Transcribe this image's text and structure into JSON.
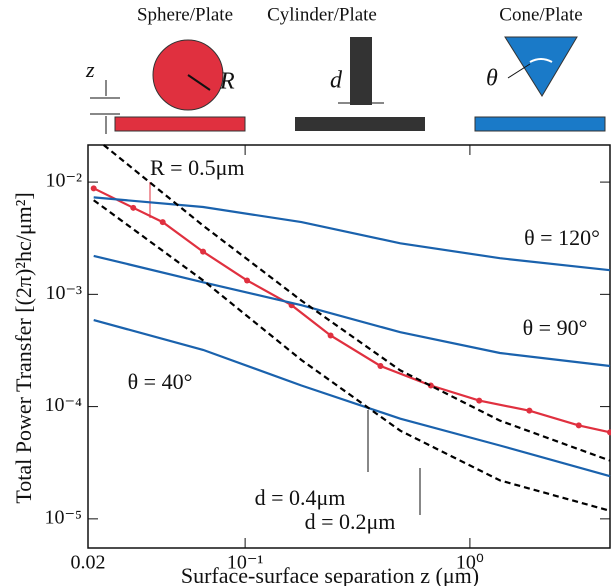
{
  "schematic": {
    "sphere": "Sphere/Plate",
    "cylinder": "Cylinder/Plate",
    "cone": "Cone/Plate",
    "z": "z",
    "R": "R",
    "d": "d",
    "theta": "θ"
  },
  "chart_data": {
    "type": "line",
    "xscale": "log",
    "yscale": "log",
    "xlabel": "Surface-surface separation z (μm)",
    "ylabel": "Total Power Transfer [(2π)²hc/μm²]",
    "xlim": [
      0.02,
      4.2
    ],
    "ylim": [
      5.5e-06,
      0.0214
    ],
    "xticks": [
      0.02,
      {
        "value": 0.1,
        "label": "10⁻¹"
      },
      {
        "value": 1,
        "label": "10⁰"
      }
    ],
    "yticks": [
      {
        "value": 1e-05,
        "label": "10⁻⁵"
      },
      {
        "value": 0.0001,
        "label": "10⁻⁴"
      },
      {
        "value": 0.001,
        "label": "10⁻³"
      },
      {
        "value": 0.01,
        "label": "10⁻²"
      }
    ],
    "series": [
      {
        "name": "R = 0.5μm",
        "color": "#e0303f",
        "style": "solid",
        "marker": true,
        "x": [
          0.0212,
          0.0318,
          0.043,
          0.065,
          0.102,
          0.161,
          0.24,
          0.4,
          0.67,
          1.1,
          1.84,
          3.05,
          4.2
        ],
        "values": [
          0.0088,
          0.0059,
          0.0044,
          0.0024,
          0.00133,
          0.0008,
          0.00043,
          0.00023,
          0.000154,
          0.000113,
          9.2e-05,
          6.8e-05,
          5.9e-05
        ]
      },
      {
        "name": "θ = 120°",
        "color": "#1a62ad",
        "style": "solid",
        "marker": false,
        "x": [
          0.0212,
          0.065,
          0.178,
          0.49,
          1.36,
          4.2
        ],
        "values": [
          0.0073,
          0.006,
          0.0044,
          0.00285,
          0.0021,
          0.00164
        ]
      },
      {
        "name": "θ = 90°",
        "color": "#1a62ad",
        "style": "solid",
        "marker": false,
        "x": [
          0.0212,
          0.065,
          0.178,
          0.49,
          1.36,
          4.2
        ],
        "values": [
          0.0022,
          0.00128,
          0.0008,
          0.00046,
          0.0003,
          0.00023
        ]
      },
      {
        "name": "θ = 40°",
        "color": "#1a62ad",
        "style": "solid",
        "marker": false,
        "x": [
          0.0212,
          0.065,
          0.178,
          0.49,
          1.36,
          4.2
        ],
        "values": [
          0.00059,
          0.00032,
          0.000154,
          7.8e-05,
          4.5e-05,
          2.4e-05
        ]
      },
      {
        "name": "d = 0.4μm",
        "color": "#000000",
        "style": "dashed",
        "marker": false,
        "x": [
          0.0235,
          0.065,
          0.178,
          0.49,
          1.36,
          4.2
        ],
        "values": [
          0.0214,
          0.0041,
          0.00088,
          0.00021,
          7.5e-05,
          3.3e-05
        ]
      },
      {
        "name": "d = 0.2μm",
        "color": "#000000",
        "style": "dashed",
        "marker": false,
        "x": [
          0.0212,
          0.065,
          0.178,
          0.49,
          1.36,
          4.2
        ],
        "values": [
          0.0069,
          0.00133,
          0.00026,
          6.1e-05,
          2.2e-05,
          1.18e-05
        ]
      }
    ]
  }
}
